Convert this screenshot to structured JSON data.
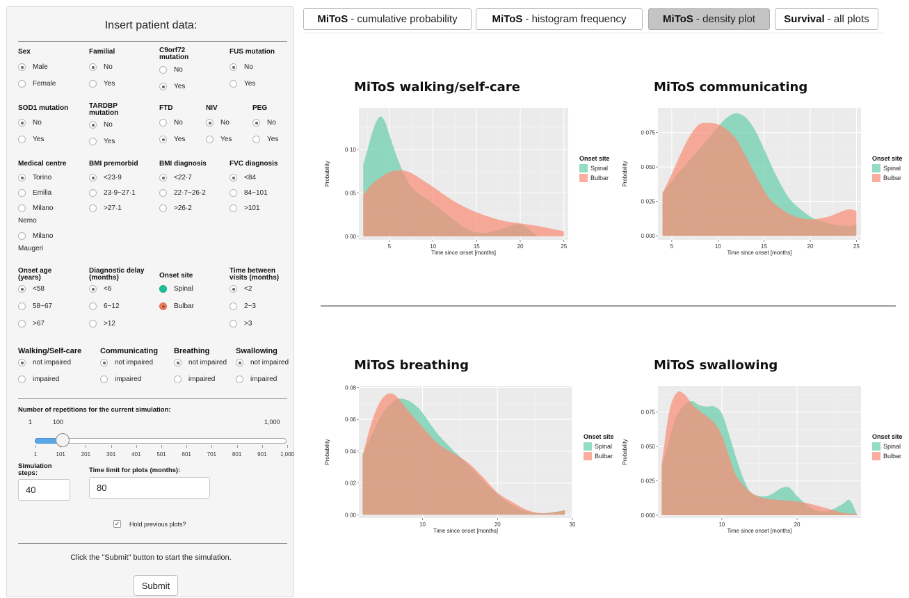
{
  "sidebar": {
    "title": "Insert patient data:",
    "row1": [
      {
        "label": "Sex",
        "options": [
          "Male",
          "Female"
        ],
        "selected": 0
      },
      {
        "label": "Familial",
        "options": [
          "No",
          "Yes"
        ],
        "selected": 0
      },
      {
        "label": "C9orf72\nmutation",
        "options": [
          "No",
          "Yes"
        ],
        "selected": 1
      },
      {
        "label": "FUS mutation",
        "options": [
          "No",
          "Yes"
        ],
        "selected": 0
      }
    ],
    "row2": [
      {
        "label": "SOD1 mutation",
        "options": [
          "No",
          "Yes"
        ],
        "selected": 0
      },
      {
        "label": "TARDBP\nmutation",
        "options": [
          "No",
          "Yes"
        ],
        "selected": 0
      },
      {
        "label": "FTD",
        "options": [
          "No",
          "Yes"
        ],
        "selected": 1
      },
      {
        "label": "NIV",
        "options": [
          "No",
          "Yes"
        ],
        "selected": 0
      },
      {
        "label": "PEG",
        "options": [
          "No",
          "Yes"
        ],
        "selected": 0
      }
    ],
    "row3": [
      {
        "label": "Medical centre",
        "options": [
          "Torino",
          "Emilia",
          "Milano\nNemo",
          "Milano\nMaugeri"
        ],
        "selected": 0
      },
      {
        "label": "BMI premorbid",
        "options": [
          "<23·9",
          "23·9~27·1",
          ">27·1"
        ],
        "selected": 0
      },
      {
        "label": "BMI diagnosis",
        "options": [
          "<22·7",
          "22·7~26·2",
          ">26·2"
        ],
        "selected": 0
      },
      {
        "label": "FVC diagnosis",
        "options": [
          "<84",
          "84~101",
          ">101"
        ],
        "selected": 0
      }
    ],
    "row4": [
      {
        "label": "Onset age\n(years)",
        "options": [
          "<58",
          "58~67",
          ">67"
        ],
        "selected": 0
      },
      {
        "label": "Diagnostic delay\n(months)",
        "options": [
          "<6",
          "6~12",
          ">12"
        ],
        "selected": 0
      },
      {
        "label": "Onset site",
        "options": [
          "Spinal",
          "Bulbar"
        ],
        "selected": 1,
        "colors": [
          "#1fbf95",
          "#f07f5d"
        ]
      },
      {
        "label": "Time between\nvisits (months)",
        "options": [
          "<2",
          "2~3",
          ">3"
        ],
        "selected": 0
      }
    ],
    "functional": [
      {
        "label": "Walking/Self-care",
        "options": [
          "not impaired",
          "impaired"
        ],
        "selected": 0
      },
      {
        "label": "Communicating",
        "options": [
          "not impaired",
          "impaired"
        ],
        "selected": 0
      },
      {
        "label": "Breathing",
        "options": [
          "not impaired",
          "impaired"
        ],
        "selected": 0
      },
      {
        "label": "Swallowing",
        "options": [
          "not impaired",
          "impaired"
        ],
        "selected": 0
      }
    ],
    "slider": {
      "label": "Number of repetitions for the current simulation:",
      "min_label": "1",
      "max_label": "1,000",
      "value_label": "100",
      "value": 100,
      "min": 1,
      "max": 1000,
      "ticks": [
        "1",
        "101",
        "201",
        "301",
        "401",
        "501",
        "601",
        "701",
        "801",
        "901",
        "1,000"
      ]
    },
    "steps": {
      "label": "Simulation\nsteps:",
      "value": "40"
    },
    "time_limit": {
      "label": "Time limit for plots (months):",
      "value": "80"
    },
    "hold": {
      "label": "Hold previous plots?",
      "checked": true
    },
    "submit_hint": "Click the \"Submit\" button to start the simulation.",
    "submit_label": "Submit"
  },
  "tabs": [
    {
      "bold": "MiToS",
      "rest": "- cumulative probability",
      "active": false
    },
    {
      "bold": "MiToS",
      "rest": "- histogram frequency",
      "active": false
    },
    {
      "bold": "MiToS",
      "rest": "- density plot",
      "active": true
    },
    {
      "bold": "Survival",
      "rest": "- all plots",
      "active": false
    }
  ],
  "chart_data": [
    {
      "type": "area",
      "title": "MiToS walking/self-care",
      "xlabel": "Time since onset [months]",
      "ylabel": "Probability",
      "xlim": [
        1.5,
        25.5
      ],
      "ylim": [
        -0.004,
        0.148
      ],
      "xticks": [
        5,
        10,
        15,
        20,
        25
      ],
      "xtick_labels": [
        "5",
        "10",
        "15",
        "20",
        "25"
      ],
      "yticks": [
        0,
        0.05,
        0.1
      ],
      "ytick_labels": [
        "0·00",
        "0·05",
        "0·10"
      ],
      "grid": true,
      "legend": {
        "title": "Onset site",
        "position": "right"
      },
      "series": [
        {
          "name": "Spinal",
          "color": "#66cdaa",
          "x": [
            2,
            3,
            3.5,
            4,
            4.5,
            5,
            6,
            7,
            8,
            10,
            12,
            14,
            16,
            18,
            20,
            22
          ],
          "y": [
            0.082,
            0.118,
            0.132,
            0.138,
            0.132,
            0.117,
            0.088,
            0.065,
            0.052,
            0.038,
            0.022,
            0.008,
            0.004,
            0.009,
            0.014,
            0.0
          ]
        },
        {
          "name": "Bulbar",
          "color": "#fa8c73",
          "x": [
            2,
            3,
            4,
            5,
            6,
            7,
            8,
            10,
            12,
            14,
            16,
            18,
            20,
            22,
            24,
            25
          ],
          "y": [
            0.048,
            0.06,
            0.068,
            0.074,
            0.076,
            0.075,
            0.07,
            0.057,
            0.043,
            0.032,
            0.024,
            0.018,
            0.015,
            0.012,
            0.008,
            0.006
          ]
        }
      ]
    },
    {
      "type": "area",
      "title": "MiToS communicating",
      "xlabel": "Time since onset [months]",
      "ylabel": "Probability",
      "xlim": [
        3.5,
        25.5
      ],
      "ylim": [
        -0.003,
        0.093
      ],
      "xticks": [
        5,
        10,
        15,
        20,
        25
      ],
      "xtick_labels": [
        "5",
        "10",
        "15",
        "20",
        "25"
      ],
      "yticks": [
        0,
        0.025,
        0.05,
        0.075
      ],
      "ytick_labels": [
        "0·000",
        "0·025",
        "0·050",
        "0·075"
      ],
      "grid": true,
      "legend": {
        "title": "Onset site",
        "position": "right"
      },
      "series": [
        {
          "name": "Spinal",
          "color": "#66cdaa",
          "x": [
            4,
            6,
            8,
            10,
            11,
            12,
            13,
            14,
            15,
            16,
            17,
            18,
            20,
            22,
            24,
            25
          ],
          "y": [
            0.031,
            0.048,
            0.063,
            0.079,
            0.086,
            0.089,
            0.086,
            0.077,
            0.063,
            0.048,
            0.035,
            0.025,
            0.014,
            0.009,
            0.007,
            0.008
          ]
        },
        {
          "name": "Bulbar",
          "color": "#fa8c73",
          "x": [
            4,
            5,
            6,
            7,
            8,
            9,
            10,
            11,
            12,
            13,
            14,
            15,
            16,
            18,
            20,
            22,
            24,
            25
          ],
          "y": [
            0.031,
            0.045,
            0.06,
            0.073,
            0.081,
            0.082,
            0.081,
            0.077,
            0.07,
            0.058,
            0.045,
            0.033,
            0.024,
            0.015,
            0.012,
            0.014,
            0.019,
            0.018
          ]
        }
      ]
    },
    {
      "type": "area",
      "title": "MiToS breathing",
      "xlabel": "Time since onset [months]",
      "ylabel": "Probability",
      "xlim": [
        1.5,
        30
      ],
      "ylim": [
        -0.002,
        0.081
      ],
      "xticks": [
        10,
        20,
        30
      ],
      "xtick_labels": [
        "10",
        "20",
        "30"
      ],
      "yticks": [
        0,
        0.02,
        0.04,
        0.06,
        0.08
      ],
      "ytick_labels": [
        "0·00",
        "0·02",
        "0·04",
        "0·06",
        "0·08"
      ],
      "grid": true,
      "legend": {
        "title": "Onset site",
        "position": "right"
      },
      "series": [
        {
          "name": "Spinal",
          "color": "#66cdaa",
          "x": [
            2,
            3,
            4,
            5,
            6,
            7,
            8,
            9,
            10,
            12,
            14,
            16,
            18,
            20,
            22,
            24,
            26,
            28,
            29
          ],
          "y": [
            0.038,
            0.048,
            0.058,
            0.066,
            0.071,
            0.073,
            0.072,
            0.069,
            0.064,
            0.051,
            0.041,
            0.032,
            0.022,
            0.013,
            0.006,
            0.002,
            0.001,
            0.002,
            0.003
          ]
        },
        {
          "name": "Bulbar",
          "color": "#fa8c73",
          "x": [
            2,
            3,
            4,
            5,
            6,
            7,
            8,
            10,
            12,
            14,
            16,
            18,
            20,
            22,
            24,
            26,
            28,
            29
          ],
          "y": [
            0.037,
            0.055,
            0.068,
            0.075,
            0.076,
            0.072,
            0.066,
            0.055,
            0.045,
            0.039,
            0.033,
            0.024,
            0.014,
            0.008,
            0.003,
            0.001,
            0.002,
            0.003
          ]
        }
      ]
    },
    {
      "type": "area",
      "title": "MiToS swallowing",
      "xlabel": "Time since onset [months]",
      "ylabel": "Probability",
      "xlim": [
        1.5,
        28.5
      ],
      "ylim": [
        -0.002,
        0.094
      ],
      "xticks": [
        10,
        20
      ],
      "xtick_labels": [
        "10",
        "20"
      ],
      "yticks": [
        0,
        0.025,
        0.05,
        0.075
      ],
      "ytick_labels": [
        "0·000",
        "0·025",
        "0·050",
        "0·075"
      ],
      "grid": true,
      "legend": {
        "title": "Onset site",
        "position": "right"
      },
      "series": [
        {
          "name": "Spinal",
          "color": "#66cdaa",
          "x": [
            2,
            3,
            4,
            5,
            6,
            7,
            8,
            9,
            10,
            11,
            12,
            13,
            14,
            16,
            18,
            19,
            20,
            22,
            24,
            26,
            27,
            28
          ],
          "y": [
            0.035,
            0.055,
            0.072,
            0.08,
            0.083,
            0.08,
            0.079,
            0.079,
            0.074,
            0.058,
            0.04,
            0.025,
            0.016,
            0.014,
            0.02,
            0.02,
            0.014,
            0.005,
            0.003,
            0.008,
            0.011,
            0.0
          ]
        },
        {
          "name": "Bulbar",
          "color": "#fa8c73",
          "x": [
            2,
            3,
            4,
            5,
            6,
            7,
            8,
            9,
            10,
            11,
            12,
            14,
            16,
            18,
            20,
            22,
            24,
            26,
            28
          ],
          "y": [
            0.037,
            0.075,
            0.089,
            0.088,
            0.081,
            0.076,
            0.072,
            0.067,
            0.058,
            0.042,
            0.028,
            0.016,
            0.012,
            0.011,
            0.01,
            0.008,
            0.005,
            0.002,
            0.001
          ]
        }
      ]
    }
  ]
}
